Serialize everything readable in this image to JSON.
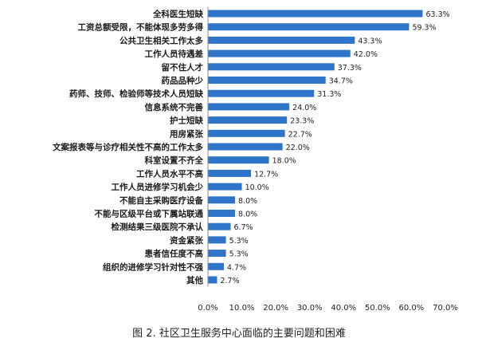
{
  "caption": "图 2. 社区卫生服务中心面临的主要问题和困难",
  "chart_data": {
    "type": "bar",
    "orientation": "horizontal",
    "categories": [
      "全科医生短缺",
      "工资总额受限，不能体现多劳多得",
      "公共卫生相关工作太多",
      "工作人员待遇差",
      "留不住人才",
      "药品品种少",
      "药师、技师、检验师等技术人员短缺",
      "信息系统不完善",
      "护士短缺",
      "用房紧张",
      "文案报表等与诊疗相关性不高的工作太多",
      "科室设置不齐全",
      "工作人员水平不高",
      "工作人员进修学习机会少",
      "不能自主采购医疗设备",
      "不能与区级平台或下属站联通",
      "检测结果三级医院不承认",
      "资金紧张",
      "患者信任度不高",
      "组织的进修学习针对性不强",
      "其他"
    ],
    "values": [
      63.3,
      59.3,
      43.3,
      42.0,
      37.3,
      34.7,
      31.3,
      24.0,
      23.3,
      22.7,
      22.0,
      18.0,
      12.7,
      10.0,
      8.0,
      8.0,
      6.7,
      5.3,
      5.3,
      4.7,
      2.7
    ],
    "value_labels": [
      "63.3%",
      "59.3%",
      "43.3%",
      "42.0%",
      "37.3%",
      "34.7%",
      "31.3%",
      "24.0%",
      "23.3%",
      "22.7%",
      "22.0%",
      "18.0%",
      "12.7%",
      "10.0%",
      "8.0%",
      "8.0%",
      "6.7%",
      "5.3%",
      "5.3%",
      "4.7%",
      "2.7%"
    ],
    "xlim": [
      0,
      70
    ],
    "x_ticks": [
      "0.0%",
      "10.0%",
      "20.0%",
      "30.0%",
      "40.0%",
      "50.0%",
      "60.0%",
      "70.0%"
    ],
    "grid": false,
    "colors": {
      "bar": "#2e74c9"
    }
  }
}
